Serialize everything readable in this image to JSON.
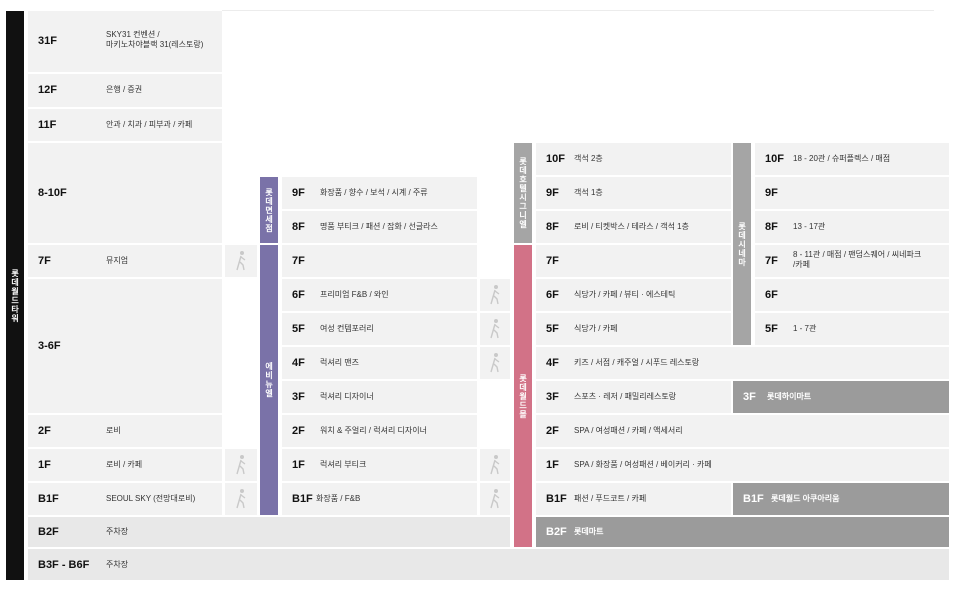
{
  "colors": {
    "tower_bar": "#111111",
    "avenuel_bar": "#7a72a8",
    "mall_bar": "#d27287",
    "gray_bar": "#a5a5a5",
    "cell": "#f2f2f2",
    "dark_cell": "#9b9b9b"
  },
  "buildings": {
    "tower": "롯데월드타워",
    "avenuel": "에비뉴엘",
    "duty_free": "롯데면세점",
    "hotel": "롯데호텔시그니엘",
    "mall": "롯데월드몰",
    "cinema": "롯데시네마"
  },
  "tower": [
    {
      "floor": "31F",
      "desc": "SKY31 컨벤션 /"
    },
    {
      "floor": "",
      "desc": "마키노차야블랙 31(레스토랑)"
    },
    {
      "floor": "12F",
      "desc": "은행 / 증권"
    },
    {
      "floor": "11F",
      "desc": "안과 / 치과 / 피부과 / 카페"
    },
    {
      "floor": "8-10F",
      "desc": ""
    },
    {
      "floor": "7F",
      "desc": "뮤지엄"
    },
    {
      "floor": "3-6F",
      "desc": ""
    },
    {
      "floor": "2F",
      "desc": "로비"
    },
    {
      "floor": "1F",
      "desc": "로비 / 카페"
    },
    {
      "floor": "B1F",
      "desc": "SEOUL SKY (전망대로비)"
    },
    {
      "floor": "B2F",
      "desc": "주차장"
    },
    {
      "floor": "B3F - B6F",
      "desc": "주차장"
    }
  ],
  "avenuel": [
    {
      "floor": "9F",
      "desc": "화장품 / 향수 / 보석 / 시계 / 주류"
    },
    {
      "floor": "8F",
      "desc": "명품 부티크 / 패션 / 잡화 / 선글라스"
    },
    {
      "floor": "7F",
      "desc": ""
    },
    {
      "floor": "6F",
      "desc": "프리미엄 F&B / 와인"
    },
    {
      "floor": "5F",
      "desc": "여성 컨템포러리"
    },
    {
      "floor": "4F",
      "desc": "럭셔리 맨즈"
    },
    {
      "floor": "3F",
      "desc": "럭셔리 디자이너"
    },
    {
      "floor": "2F",
      "desc": "워치 & 주얼리 / 럭셔리 디자이너"
    },
    {
      "floor": "1F",
      "desc": "럭셔리 부티크"
    },
    {
      "floor": "B1F",
      "desc": "화장품 / F&B"
    }
  ],
  "mall": [
    {
      "floor": "10F",
      "desc": "객석 2층"
    },
    {
      "floor": "9F",
      "desc": "객석 1층"
    },
    {
      "floor": "8F",
      "desc": "로비 / 티켓박스 / 테라스 / 객석 1층"
    },
    {
      "floor": "7F",
      "desc": ""
    },
    {
      "floor": "6F",
      "desc": "식당가 / 카페 / 뷰티 · 에스테틱"
    },
    {
      "floor": "5F",
      "desc": "식당가 / 카페"
    },
    {
      "floor": "4F",
      "desc": "키즈 / 서점 / 캐주얼 / 시푸드 레스토랑"
    },
    {
      "floor": "3F",
      "desc": "스포츠 · 레저 / 패밀리레스토랑"
    },
    {
      "floor": "2F",
      "desc": "SPA / 여성패션 / 카페 / 액세서리"
    },
    {
      "floor": "1F",
      "desc": "SPA / 화장품 / 여성패션 / 베이커리 · 카페"
    },
    {
      "floor": "B1F",
      "desc": "패션 / 푸드코트 / 카페"
    },
    {
      "floor": "B2F",
      "desc": "롯데마트"
    }
  ],
  "cinema": [
    {
      "floor": "10F",
      "desc": "18 - 20관 / 슈퍼플렉스 / 매점"
    },
    {
      "floor": "9F",
      "desc": ""
    },
    {
      "floor": "8F",
      "desc": "13 - 17관"
    },
    {
      "floor": "7F",
      "desc": "8 - 11관 / 매점 / 팬덤스퀘어 / 씨네파크"
    },
    {
      "floor": "",
      "desc": "/카페"
    },
    {
      "floor": "6F",
      "desc": ""
    },
    {
      "floor": "5F",
      "desc": "1 - 7관"
    }
  ],
  "extra": [
    {
      "floor": "3F",
      "desc": "롯데하이마트"
    },
    {
      "floor": "B1F",
      "desc": "롯데월드 아쿠아리움"
    }
  ]
}
